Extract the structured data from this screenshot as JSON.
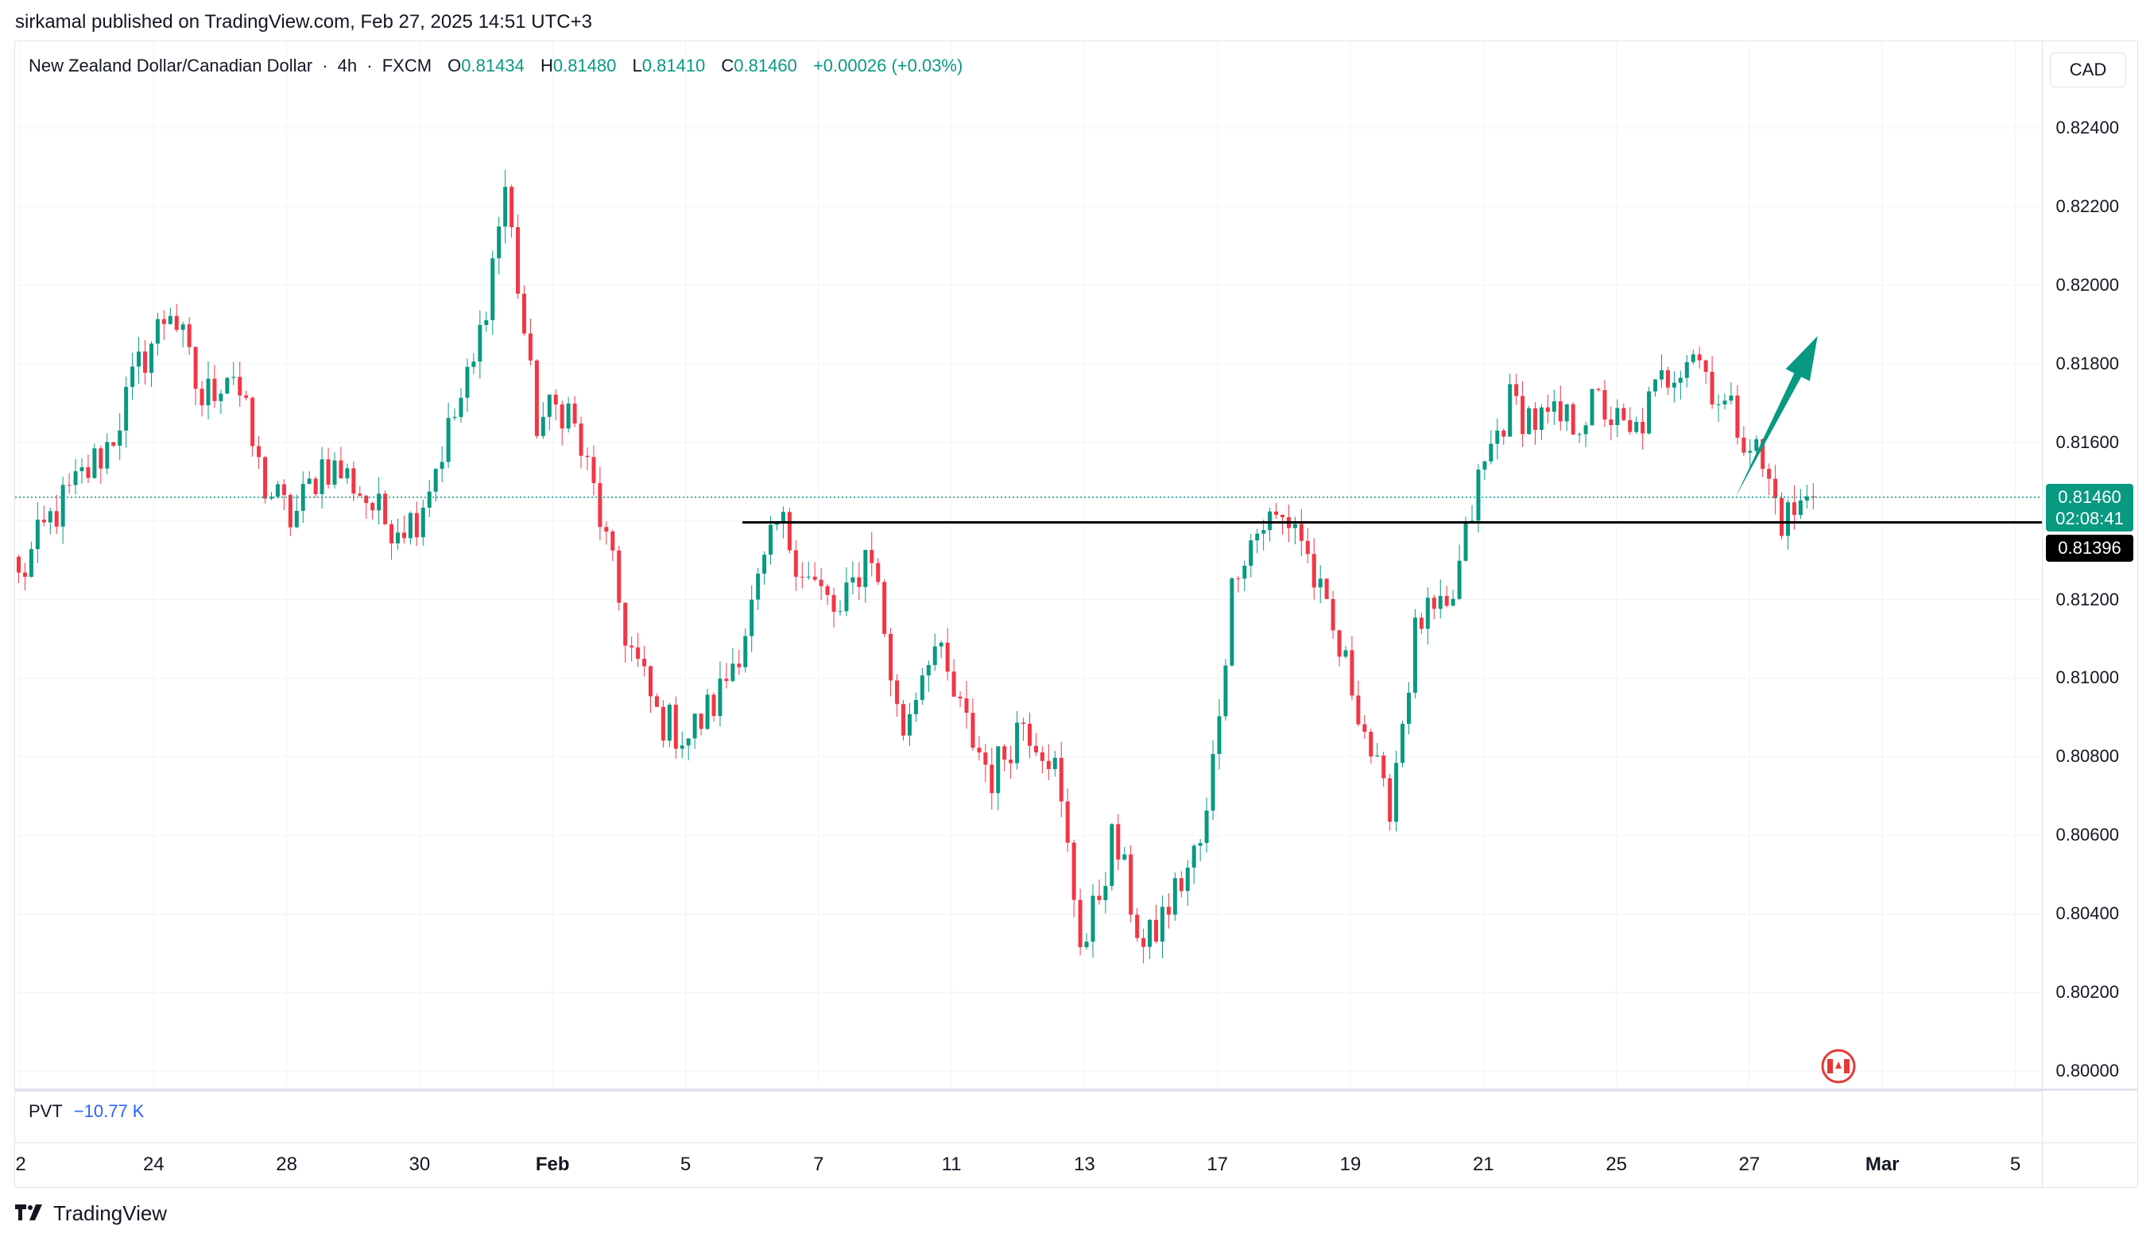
{
  "publish_line": "sirkamal published on TradingView.com, Feb 27, 2025 14:51 UTC+3",
  "legend": {
    "symbol": "New Zealand Dollar/Canadian Dollar",
    "interval": "4h",
    "exchange": "FXCM",
    "open_key": "O",
    "open": "0.81434",
    "high_key": "H",
    "high": "0.81480",
    "low_key": "L",
    "low": "0.81410",
    "close_key": "C",
    "close": "0.81460",
    "change": "+0.00026 (+0.03%)"
  },
  "currency_button": "CAD",
  "last_price_tag": {
    "price": "0.81460",
    "countdown": "02:08:41"
  },
  "level_tag": "0.81396",
  "pvt": {
    "name": "PVT",
    "value": "−10.77 K"
  },
  "brand": "TradingView",
  "colors": {
    "up": "#089981",
    "down": "#f23645",
    "level_line": "#000000",
    "arrow": "#089981",
    "grid": "#f0f3fa",
    "pvt_value": "#2962ff"
  },
  "icons": {
    "flag_marker": "canada-flag-icon",
    "brand_logo": "tradingview-logo-icon"
  },
  "chart_data": {
    "type": "candlestick",
    "title": "New Zealand Dollar/Canadian Dollar",
    "interval": "4h",
    "y_axis_ticks": [
      "0.82400",
      "0.82200",
      "0.82000",
      "0.81800",
      "0.81600",
      "0.81400",
      "0.81200",
      "0.81000",
      "0.80800",
      "0.80600",
      "0.80400",
      "0.80200",
      "0.80000"
    ],
    "y_range": [
      0.7996,
      0.8262
    ],
    "x_axis_ticks": [
      "2",
      "24",
      "28",
      "30",
      "Feb",
      "5",
      "7",
      "11",
      "13",
      "17",
      "19",
      "21",
      "25",
      "27",
      "Mar",
      "5"
    ],
    "horizontal_level": 0.81396,
    "last_price": 0.8146,
    "anchors": [
      0.8125,
      0.814,
      0.815,
      0.816,
      0.818,
      0.8195,
      0.817,
      0.818,
      0.815,
      0.814,
      0.8155,
      0.815,
      0.814,
      0.814,
      0.816,
      0.818,
      0.8225,
      0.8165,
      0.817,
      0.8145,
      0.811,
      0.809,
      0.8085,
      0.8095,
      0.8115,
      0.814,
      0.8125,
      0.8115,
      0.8135,
      0.8085,
      0.811,
      0.809,
      0.8075,
      0.809,
      0.808,
      0.803,
      0.806,
      0.803,
      0.8045,
      0.806,
      0.813,
      0.814,
      0.814,
      0.8115,
      0.8095,
      0.8065,
      0.8115,
      0.8115,
      0.815,
      0.817,
      0.8165,
      0.8165,
      0.817,
      0.816,
      0.8175,
      0.8185,
      0.817,
      0.816,
      0.814,
      0.8146
    ],
    "arrow": {
      "from": [
        272,
        0.8146
      ],
      "to": [
        285,
        0.8187
      ],
      "direction": "up"
    }
  }
}
